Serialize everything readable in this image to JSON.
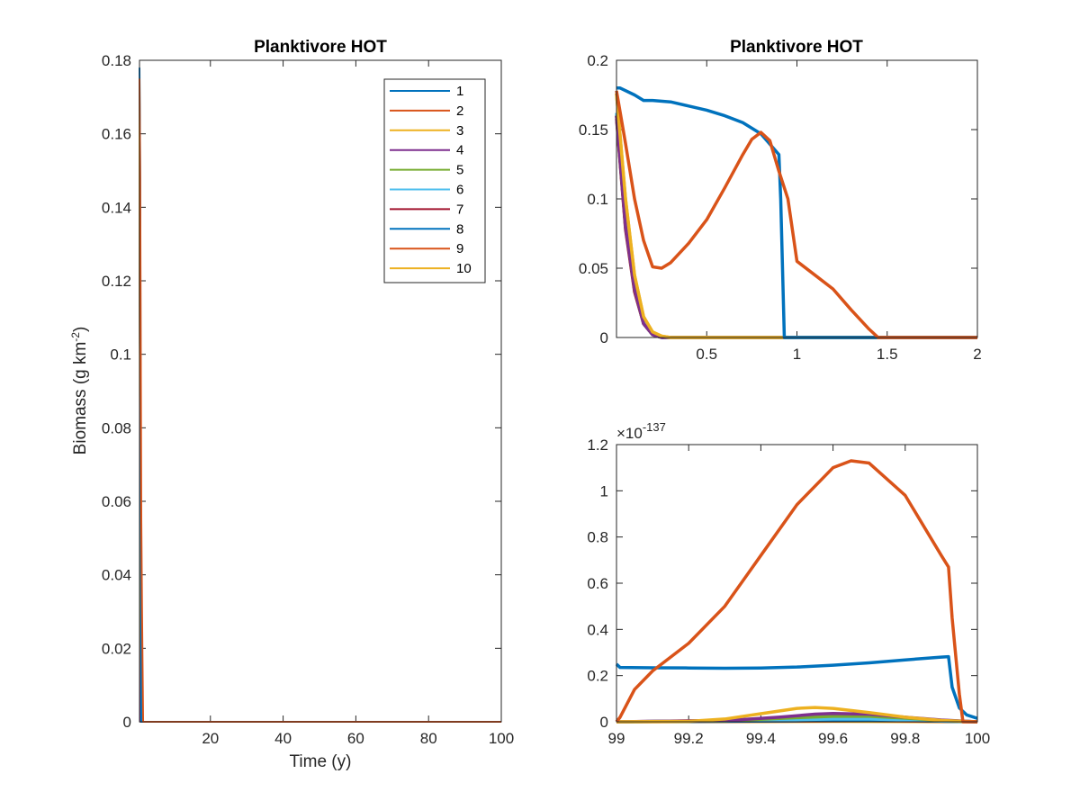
{
  "chart_data": [
    {
      "type": "line",
      "title": "Planktivore HOT",
      "xlabel": "Time (y)",
      "ylabel_main": "Biomass (g km",
      "ylabel_sup": "-2",
      "ylabel_close": ")",
      "xlim": [
        0.5,
        100
      ],
      "ylim": [
        0,
        0.18
      ],
      "xticks": [
        20,
        40,
        60,
        80,
        100
      ],
      "xtick_labels": [
        "20",
        "40",
        "60",
        "80",
        "100"
      ],
      "yticks": [
        0,
        0.02,
        0.04,
        0.06,
        0.08,
        0.1,
        0.12,
        0.14,
        0.16,
        0.18
      ],
      "ytick_labels": [
        "0",
        "0.02",
        "0.04",
        "0.06",
        "0.08",
        "0.1",
        "0.12",
        "0.14",
        "0.16",
        "0.18"
      ],
      "legend": [
        "1",
        "2",
        "3",
        "4",
        "5",
        "6",
        "7",
        "8",
        "9",
        "10"
      ],
      "legend_position": "top-right",
      "series": [
        {
          "name": "1",
          "color": "#0072BD",
          "x": [
            0.5,
            0.7,
            1.0,
            1.2,
            100
          ],
          "y": [
            0.178,
            0.147,
            0.0,
            0.0,
            0.0
          ]
        },
        {
          "name": "2",
          "color": "#D95319",
          "x": [
            0.5,
            0.7,
            1.0,
            1.2,
            1.5,
            100
          ],
          "y": [
            0.175,
            0.148,
            0.055,
            0.03,
            0.0,
            0.0
          ]
        },
        {
          "name": "3",
          "color": "#EDB120",
          "x": [
            0.5,
            0.6,
            0.8,
            1.0,
            100
          ],
          "y": [
            0.174,
            0.09,
            0.05,
            0.0,
            0.0
          ]
        },
        {
          "name": "4",
          "color": "#7E2F8E",
          "x": [
            0.5,
            0.8,
            100
          ],
          "y": [
            0.17,
            0.0,
            0.0
          ]
        },
        {
          "name": "5",
          "color": "#77AC30",
          "x": [
            0.5,
            0.8,
            100
          ],
          "y": [
            0.17,
            0.0,
            0.0
          ]
        },
        {
          "name": "6",
          "color": "#4DBEEE",
          "x": [
            0.5,
            0.8,
            100
          ],
          "y": [
            0.17,
            0.0,
            0.0
          ]
        },
        {
          "name": "7",
          "color": "#A2142F",
          "x": [
            0.5,
            0.8,
            100
          ],
          "y": [
            0.17,
            0.0,
            0.0
          ]
        },
        {
          "name": "8",
          "color": "#0072BD",
          "x": [
            0.5,
            0.8,
            100
          ],
          "y": [
            0.17,
            0.0,
            0.0
          ]
        },
        {
          "name": "9",
          "color": "#D95319",
          "x": [
            0.5,
            0.8,
            100
          ],
          "y": [
            0.17,
            0.0,
            0.0
          ]
        },
        {
          "name": "10",
          "color": "#EDB120",
          "x": [
            0.5,
            0.8,
            100
          ],
          "y": [
            0.174,
            0.0,
            0.0
          ]
        }
      ]
    },
    {
      "type": "line",
      "title": "Planktivore HOT",
      "xlabel": "",
      "ylabel": "",
      "xlim": [
        0,
        2
      ],
      "ylim": [
        0,
        0.2
      ],
      "xticks": [
        0.5,
        1,
        1.5,
        2
      ],
      "xtick_labels": [
        "0.5",
        "1",
        "1.5",
        "2"
      ],
      "yticks": [
        0,
        0.05,
        0.1,
        0.15,
        0.2
      ],
      "ytick_labels": [
        "0",
        "0.05",
        "0.1",
        "0.15",
        "0.2"
      ],
      "series": [
        {
          "name": "1",
          "color": "#0072BD",
          "x": [
            0,
            0.02,
            0.1,
            0.15,
            0.2,
            0.3,
            0.4,
            0.5,
            0.6,
            0.7,
            0.8,
            0.9,
            0.91,
            0.93,
            2.0
          ],
          "y": [
            0.18,
            0.18,
            0.175,
            0.171,
            0.171,
            0.17,
            0.167,
            0.164,
            0.16,
            0.155,
            0.147,
            0.132,
            0.1,
            0.0,
            0.0
          ]
        },
        {
          "name": "2",
          "color": "#D95319",
          "x": [
            0,
            0.05,
            0.1,
            0.15,
            0.2,
            0.25,
            0.3,
            0.4,
            0.5,
            0.6,
            0.7,
            0.75,
            0.8,
            0.85,
            0.9,
            0.95,
            1.0,
            1.1,
            1.2,
            1.3,
            1.4,
            1.45,
            2.0
          ],
          "y": [
            0.178,
            0.14,
            0.1,
            0.07,
            0.051,
            0.05,
            0.054,
            0.068,
            0.085,
            0.108,
            0.132,
            0.143,
            0.148,
            0.142,
            0.12,
            0.1,
            0.055,
            0.045,
            0.035,
            0.02,
            0.006,
            0.0,
            0.0
          ]
        },
        {
          "name": "3",
          "color": "#EDB120",
          "x": [
            0,
            0.05,
            0.1,
            0.15,
            0.2,
            0.25,
            0.3,
            2.0
          ],
          "y": [
            0.176,
            0.1,
            0.045,
            0.015,
            0.004,
            0.001,
            0.0,
            0.0
          ]
        },
        {
          "name": "4",
          "color": "#7E2F8E",
          "x": [
            0,
            0.05,
            0.1,
            0.15,
            0.2,
            0.25,
            2.0
          ],
          "y": [
            0.16,
            0.08,
            0.035,
            0.01,
            0.002,
            0.0,
            0.0
          ]
        },
        {
          "name": "5",
          "color": "#77AC30",
          "x": [
            0,
            0.05,
            0.1,
            0.15,
            0.2,
            0.25,
            2.0
          ],
          "y": [
            0.16,
            0.08,
            0.035,
            0.01,
            0.002,
            0.0,
            0.0
          ]
        },
        {
          "name": "6",
          "color": "#4DBEEE",
          "x": [
            0,
            0.05,
            0.1,
            0.15,
            0.2,
            0.25,
            2.0
          ],
          "y": [
            0.162,
            0.082,
            0.036,
            0.011,
            0.002,
            0.0,
            0.0
          ]
        },
        {
          "name": "7",
          "color": "#A2142F",
          "x": [
            0,
            0.05,
            0.1,
            0.15,
            0.2,
            0.25,
            2.0
          ],
          "y": [
            0.158,
            0.078,
            0.033,
            0.01,
            0.002,
            0.0,
            0.0
          ]
        },
        {
          "name": "8",
          "color": "#0072BD",
          "x": [
            0,
            0.05,
            0.1,
            0.15,
            0.2,
            0.25,
            2.0
          ],
          "y": [
            0.16,
            0.08,
            0.034,
            0.01,
            0.002,
            0.0,
            0.0
          ]
        },
        {
          "name": "9",
          "color": "#D95319",
          "x": [
            0,
            0.05,
            0.1,
            0.15,
            0.2,
            0.25,
            2.0
          ],
          "y": [
            0.16,
            0.08,
            0.035,
            0.01,
            0.002,
            0.0,
            0.0
          ]
        },
        {
          "name": "10",
          "color": "#EDB120",
          "x": [
            0,
            0.05,
            0.1,
            0.15,
            0.2,
            0.25,
            0.3,
            2.0
          ],
          "y": [
            0.176,
            0.1,
            0.045,
            0.015,
            0.004,
            0.001,
            0.0,
            0.0
          ]
        }
      ]
    },
    {
      "type": "line",
      "title": "",
      "xlabel": "",
      "ylabel": "",
      "exponent_prefix": "×10",
      "exponent_sup": "-137",
      "xlim": [
        99,
        100
      ],
      "ylim": [
        0,
        1.2
      ],
      "xticks": [
        99,
        99.2,
        99.4,
        99.6,
        99.8,
        100
      ],
      "xtick_labels": [
        "99",
        "99.2",
        "99.4",
        "99.6",
        "99.8",
        "100"
      ],
      "yticks": [
        0,
        0.2,
        0.4,
        0.6,
        0.8,
        1,
        1.2
      ],
      "ytick_labels": [
        "0",
        "0.2",
        "0.4",
        "0.6",
        "0.8",
        "1",
        "1.2"
      ],
      "series": [
        {
          "name": "1",
          "color": "#0072BD",
          "x": [
            99.0,
            99.01,
            99.1,
            99.2,
            99.3,
            99.4,
            99.5,
            99.6,
            99.7,
            99.8,
            99.9,
            99.92,
            99.93,
            99.95,
            99.97,
            100.0
          ],
          "y": [
            0.25,
            0.235,
            0.234,
            0.233,
            0.232,
            0.233,
            0.237,
            0.245,
            0.255,
            0.268,
            0.28,
            0.282,
            0.15,
            0.06,
            0.03,
            0.015
          ]
        },
        {
          "name": "2",
          "color": "#D95319",
          "x": [
            99.0,
            99.01,
            99.05,
            99.1,
            99.2,
            99.3,
            99.4,
            99.5,
            99.6,
            99.65,
            99.7,
            99.8,
            99.9,
            99.92,
            99.93,
            99.95,
            99.96,
            100.0
          ],
          "y": [
            0.0,
            0.02,
            0.14,
            0.22,
            0.34,
            0.5,
            0.72,
            0.94,
            1.1,
            1.13,
            1.12,
            0.98,
            0.72,
            0.67,
            0.45,
            0.12,
            0.0,
            0.0
          ]
        },
        {
          "name": "3",
          "color": "#EDB120",
          "x": [
            99.0,
            99.2,
            99.3,
            99.4,
            99.5,
            99.55,
            99.6,
            99.7,
            99.8,
            99.9,
            100.0
          ],
          "y": [
            0.0,
            0.002,
            0.012,
            0.035,
            0.058,
            0.062,
            0.058,
            0.04,
            0.02,
            0.006,
            0.0
          ]
        },
        {
          "name": "4",
          "color": "#7E2F8E",
          "x": [
            99.0,
            99.3,
            99.45,
            99.55,
            99.6,
            99.7,
            99.8,
            99.9,
            100.0
          ],
          "y": [
            0.0,
            0.005,
            0.02,
            0.033,
            0.036,
            0.033,
            0.02,
            0.008,
            0.0
          ]
        },
        {
          "name": "5",
          "color": "#77AC30",
          "x": [
            99.0,
            99.3,
            99.5,
            99.6,
            99.7,
            99.8,
            99.9,
            100.0
          ],
          "y": [
            0.0,
            0.004,
            0.018,
            0.024,
            0.024,
            0.016,
            0.006,
            0.0
          ]
        },
        {
          "name": "6",
          "color": "#4DBEEE",
          "x": [
            99.0,
            99.4,
            99.6,
            99.7,
            99.8,
            99.9,
            100.0
          ],
          "y": [
            0.0,
            0.006,
            0.012,
            0.012,
            0.008,
            0.003,
            0.0
          ]
        },
        {
          "name": "7",
          "color": "#A2142F",
          "x": [
            99.0,
            99.4,
            99.6,
            99.7,
            99.8,
            99.9,
            100.0
          ],
          "y": [
            0.0,
            0.008,
            0.02,
            0.022,
            0.016,
            0.006,
            0.0
          ]
        },
        {
          "name": "8",
          "color": "#0072BD",
          "x": [
            99.0,
            99.5,
            99.7,
            99.9,
            100.0
          ],
          "y": [
            0.0,
            0.004,
            0.008,
            0.003,
            0.0
          ]
        },
        {
          "name": "9",
          "color": "#D95319",
          "x": [
            99.0,
            99.5,
            99.7,
            99.9,
            100.0
          ],
          "y": [
            0.0,
            0.003,
            0.005,
            0.002,
            0.0
          ]
        },
        {
          "name": "10",
          "color": "#EDB120",
          "x": [
            99.0,
            99.6,
            100.0
          ],
          "y": [
            0.0,
            0.002,
            0.0
          ]
        }
      ]
    }
  ]
}
